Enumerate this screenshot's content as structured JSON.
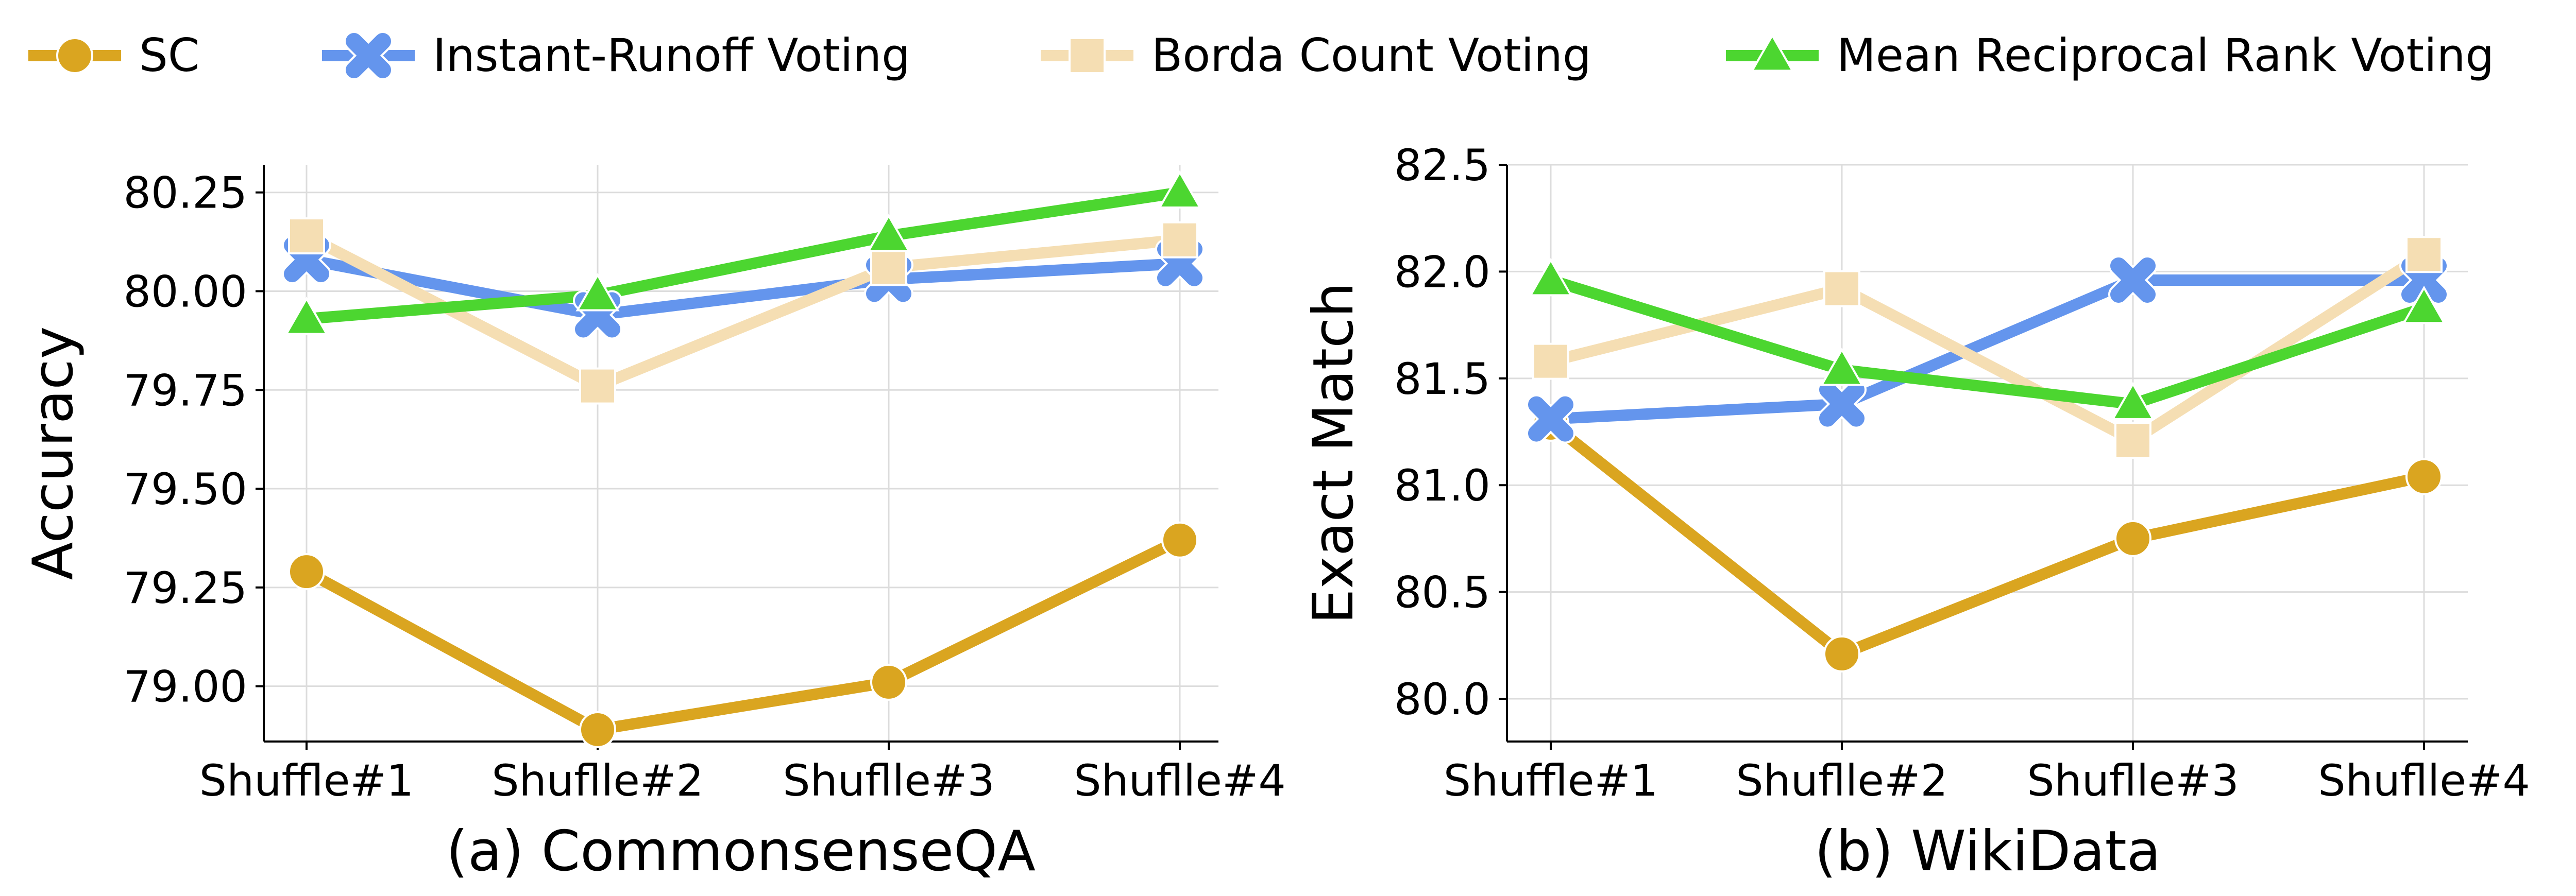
{
  "legend": {
    "placement": "top",
    "items": [
      {
        "label": "SC",
        "color": "#DAA520",
        "marker": "circle"
      },
      {
        "label": "Instant-Runoff Voting",
        "color": "#6495ED",
        "marker": "x"
      },
      {
        "label": "Borda Count Voting",
        "color": "#F5DEB3",
        "marker": "square"
      },
      {
        "label": "Mean Reciprocal Rank Voting",
        "color": "#4CD630",
        "marker": "triangle"
      }
    ]
  },
  "chart_data": [
    {
      "type": "line",
      "title": "(a) CommonsenseQA",
      "xlabel": "",
      "ylabel": "Accuracy",
      "categories": [
        "Shuffle#1",
        "Shuflle#2",
        "Shuflle#3",
        "Shuflle#4"
      ],
      "ylim": [
        78.86,
        80.32
      ],
      "yticks": [
        79.0,
        79.25,
        79.5,
        79.75,
        80.0,
        80.25
      ],
      "ytick_labels": [
        "79.00",
        "79.25",
        "79.50",
        "79.75",
        "80.00",
        "80.25"
      ],
      "grid": true,
      "series": [
        {
          "name": "SC",
          "values": [
            79.29,
            78.89,
            79.01,
            79.37
          ]
        },
        {
          "name": "Instant-Runoff Voting",
          "values": [
            80.08,
            79.94,
            80.03,
            80.07
          ]
        },
        {
          "name": "Borda Count Voting",
          "values": [
            80.14,
            79.76,
            80.06,
            80.13
          ]
        },
        {
          "name": "Mean Reciprocal Rank Voting",
          "values": [
            79.93,
            79.99,
            80.14,
            80.25
          ]
        }
      ]
    },
    {
      "type": "line",
      "title": "(b) WikiData",
      "xlabel": "",
      "ylabel": "Exact Match",
      "categories": [
        "Shuffle#1",
        "Shuflle#2",
        "Shuflle#3",
        "Shuflle#4"
      ],
      "ylim": [
        79.8,
        82.5
      ],
      "yticks": [
        80.0,
        80.5,
        81.0,
        81.5,
        82.0,
        82.5
      ],
      "ytick_labels": [
        "80.0",
        "80.5",
        "81.0",
        "81.5",
        "82.0",
        "82.5"
      ],
      "grid": true,
      "series": [
        {
          "name": "SC",
          "values": [
            81.29,
            80.21,
            80.75,
            81.04
          ]
        },
        {
          "name": "Instant-Runoff Voting",
          "values": [
            81.31,
            81.38,
            81.96,
            81.96
          ]
        },
        {
          "name": "Borda Count Voting",
          "values": [
            81.58,
            81.92,
            81.21,
            82.08
          ]
        },
        {
          "name": "Mean Reciprocal Rank Voting",
          "values": [
            81.96,
            81.54,
            81.38,
            81.83
          ]
        }
      ]
    }
  ]
}
